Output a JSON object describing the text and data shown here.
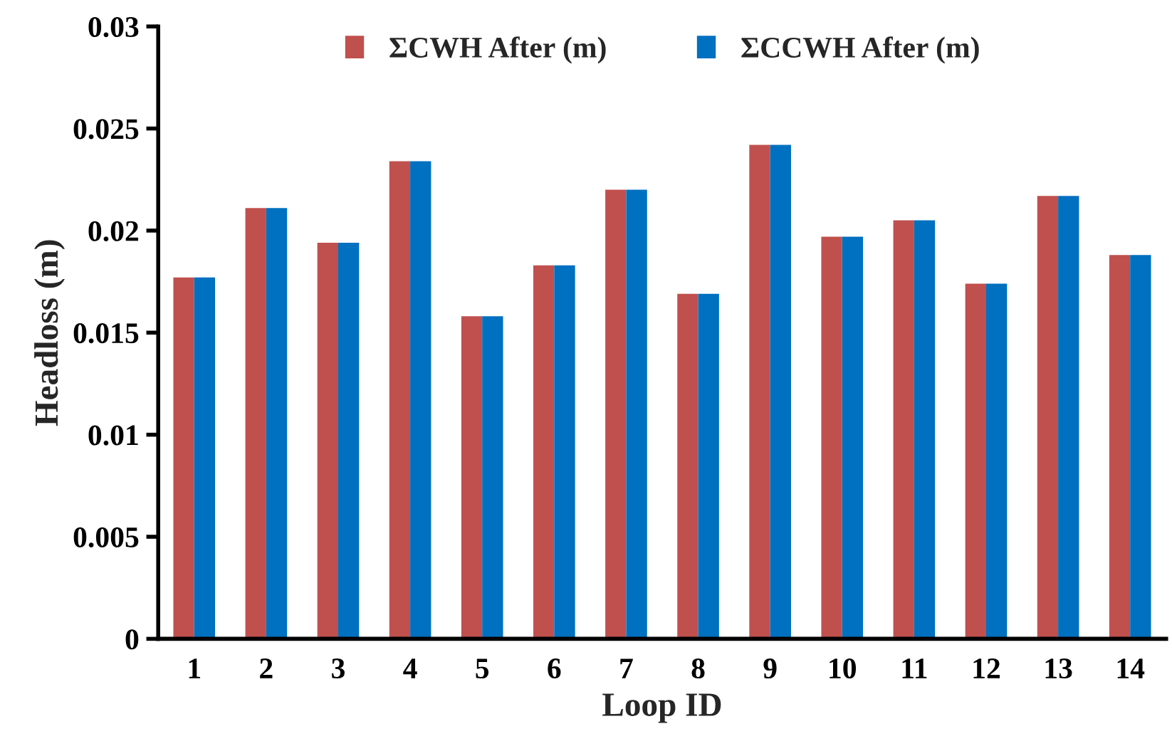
{
  "chart_data": {
    "type": "bar",
    "xlabel": "Loop ID",
    "ylabel": "Headloss (m)",
    "categories": [
      "1",
      "2",
      "3",
      "4",
      "5",
      "6",
      "7",
      "8",
      "9",
      "10",
      "11",
      "12",
      "13",
      "14"
    ],
    "series": [
      {
        "name": "ΣCWH After (m)",
        "color": "#c0504d",
        "values": [
          0.0177,
          0.0211,
          0.0194,
          0.0234,
          0.0158,
          0.0183,
          0.022,
          0.0169,
          0.0242,
          0.0197,
          0.0205,
          0.0174,
          0.0217,
          0.0188
        ]
      },
      {
        "name": "ΣCCWH After (m)",
        "color": "#0070c0",
        "values": [
          0.0177,
          0.0211,
          0.0194,
          0.0234,
          0.0158,
          0.0183,
          0.022,
          0.0169,
          0.0242,
          0.0197,
          0.0205,
          0.0174,
          0.0217,
          0.0188
        ]
      }
    ],
    "ylim": [
      0,
      0.03
    ],
    "yticks": [
      0,
      0.005,
      0.01,
      0.015,
      0.02,
      0.025,
      0.03
    ],
    "grid": false,
    "legend": "top"
  }
}
